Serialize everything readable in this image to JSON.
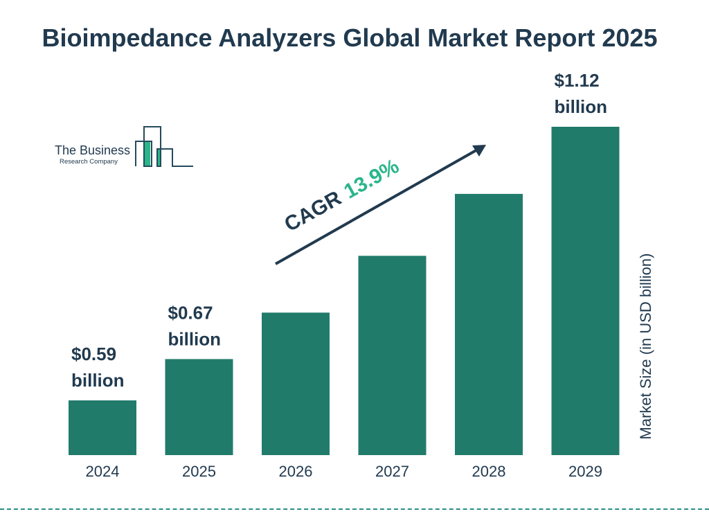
{
  "chart_data": {
    "type": "bar",
    "title": "Bioimpedance Analyzers Global Market Report 2025",
    "categories": [
      "2024",
      "2025",
      "2026",
      "2027",
      "2028",
      "2029"
    ],
    "values": [
      0.59,
      0.67,
      0.76,
      0.87,
      0.99,
      1.12
    ],
    "data_labels": {
      "0": "$0.59 billion",
      "1": "$0.67 billion",
      "5": "$1.12 billion"
    },
    "ylabel": "Market Size (in USD billion)",
    "grid": false,
    "bar_color": "#217b6b",
    "annotation": {
      "prefix": "CAGR",
      "value": "13.9%",
      "value_color": "#2bb58a"
    }
  },
  "logo": {
    "line1": "The Business",
    "line2": "Research Company"
  }
}
